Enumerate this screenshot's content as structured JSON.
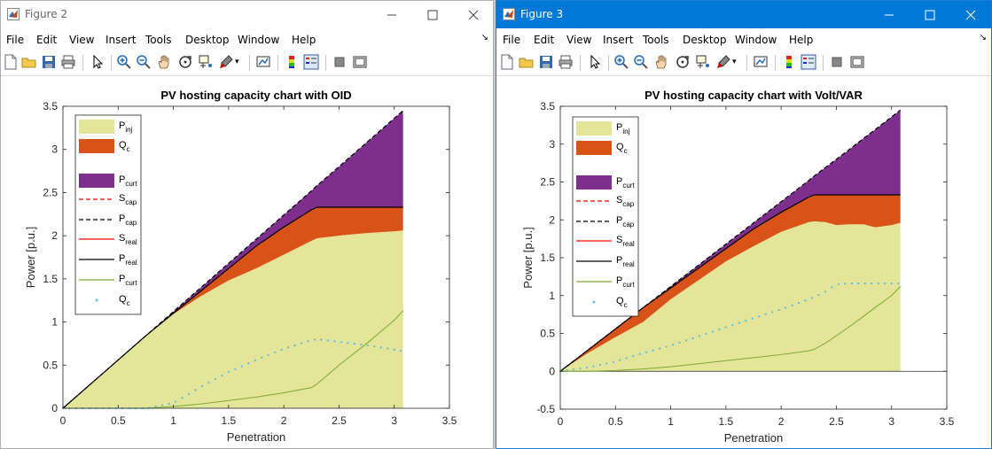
{
  "windows": [
    {
      "title": "Figure 2",
      "menus": [
        "File",
        "Edit",
        "View",
        "Insert",
        "Tools",
        "Desktop",
        "Window",
        "Help"
      ],
      "plot": {
        "title": "PV hosting capacity chart with OID",
        "xlabel": "Penetration",
        "ylabel": "Power [p.u.]",
        "xticks": [
          "0",
          "0.5",
          "1",
          "1.5",
          "2",
          "2.5",
          "3",
          "3.5"
        ],
        "yticks": [
          "0",
          "0.5",
          "1",
          "1.5",
          "2",
          "2.5",
          "3",
          "3.5"
        ]
      }
    },
    {
      "title": "Figure 3",
      "menus": [
        "File",
        "Edit",
        "View",
        "Insert",
        "Tools",
        "Desktop",
        "Window",
        "Help"
      ],
      "plot": {
        "title": "PV hosting capacity chart with Volt/VAR",
        "xlabel": "Penetration",
        "ylabel": "Power [p.u.]",
        "xticks": [
          "0",
          "0.5",
          "1",
          "1.5",
          "2",
          "2.5",
          "3",
          "3.5"
        ],
        "yticks": [
          "-0.5",
          "0",
          "0.5",
          "1",
          "1.5",
          "2",
          "2.5",
          "3",
          "3.5"
        ]
      }
    }
  ],
  "legend": [
    {
      "base": "P",
      "sub": "inj",
      "kind": "patch",
      "color": "#e5e59a"
    },
    {
      "base": "Q",
      "sub": "c",
      "kind": "patch",
      "color": "#d95319"
    },
    {
      "base": "P",
      "sub": "curt",
      "kind": "patch",
      "color": "#7e2f8e"
    },
    {
      "base": "S",
      "sub": "cap",
      "kind": "dash",
      "color": "#ff0000"
    },
    {
      "base": "P",
      "sub": "cap",
      "kind": "dash",
      "color": "#000000"
    },
    {
      "base": "S",
      "sub": "real",
      "kind": "line",
      "color": "#ff0000"
    },
    {
      "base": "P",
      "sub": "real",
      "kind": "line",
      "color": "#000000"
    },
    {
      "base": "P",
      "sub": "curt",
      "kind": "line",
      "color": "#77ac30"
    },
    {
      "base": "Q",
      "sub": "c",
      "kind": "dots",
      "color": "#4dbeee"
    }
  ],
  "colors": {
    "pinj": "#e5e59a",
    "qc": "#d95319",
    "pcurt": "#7e2f8e",
    "pcurt_line": "#77ac30",
    "qc_dots": "#4dbeee",
    "titlebar_active": "#0078d7"
  },
  "chart_data": [
    {
      "type": "area",
      "title": "PV hosting capacity chart with OID",
      "xlabel": "Penetration",
      "ylabel": "Power [p.u.]",
      "xlim": [
        0,
        3.5
      ],
      "ylim": [
        0,
        3.5
      ],
      "x": [
        0,
        0.25,
        0.5,
        0.75,
        1.0,
        1.25,
        1.5,
        1.75,
        2.0,
        2.25,
        2.3,
        2.5,
        2.75,
        3.0,
        3.08
      ],
      "series": [
        {
          "name": "P_cap",
          "style": "dash",
          "values": [
            0,
            0.28,
            0.56,
            0.84,
            1.12,
            1.4,
            1.68,
            1.96,
            2.24,
            2.52,
            2.58,
            2.8,
            3.08,
            3.36,
            3.45
          ]
        },
        {
          "name": "P_real",
          "values": [
            0,
            0.28,
            0.56,
            0.84,
            1.1,
            1.36,
            1.62,
            1.88,
            2.1,
            2.3,
            2.33,
            2.33,
            2.33,
            2.33,
            2.33
          ]
        },
        {
          "name": "P_inj",
          "values": [
            0,
            0.28,
            0.56,
            0.84,
            1.09,
            1.3,
            1.48,
            1.62,
            1.78,
            1.94,
            1.97,
            2.0,
            2.03,
            2.05,
            2.06
          ]
        },
        {
          "name": "P_curt",
          "values": [
            0,
            0,
            0,
            0,
            0.02,
            0.05,
            0.09,
            0.13,
            0.18,
            0.24,
            0.28,
            0.5,
            0.75,
            1.02,
            1.13
          ]
        },
        {
          "name": "Q_c",
          "values": [
            0,
            0,
            0,
            0,
            0.06,
            0.25,
            0.42,
            0.56,
            0.69,
            0.79,
            0.8,
            0.77,
            0.73,
            0.68,
            0.66
          ]
        }
      ]
    },
    {
      "type": "area",
      "title": "PV hosting capacity chart with Volt/VAR",
      "xlabel": "Penetration",
      "ylabel": "Power [p.u.]",
      "xlim": [
        0,
        3.5
      ],
      "ylim": [
        -0.5,
        3.5
      ],
      "x": [
        0,
        0.25,
        0.5,
        0.75,
        1.0,
        1.25,
        1.5,
        1.75,
        2.0,
        2.25,
        2.3,
        2.4,
        2.5,
        2.6,
        2.75,
        2.85,
        3.0,
        3.08
      ],
      "series": [
        {
          "name": "P_cap",
          "style": "dash",
          "values": [
            0,
            0.28,
            0.56,
            0.84,
            1.12,
            1.4,
            1.68,
            1.96,
            2.24,
            2.52,
            2.58,
            2.69,
            2.8,
            2.91,
            3.08,
            3.19,
            3.36,
            3.45
          ]
        },
        {
          "name": "P_real",
          "values": [
            0,
            0.28,
            0.56,
            0.84,
            1.1,
            1.36,
            1.62,
            1.88,
            2.1,
            2.3,
            2.33,
            2.33,
            2.33,
            2.33,
            2.33,
            2.33,
            2.33,
            2.33
          ]
        },
        {
          "name": "P_inj",
          "values": [
            0,
            0.24,
            0.45,
            0.65,
            0.95,
            1.2,
            1.45,
            1.65,
            1.84,
            1.97,
            1.98,
            1.97,
            1.93,
            1.94,
            1.94,
            1.9,
            1.93,
            1.96
          ]
        },
        {
          "name": "P_curt",
          "values": [
            0,
            0,
            0.01,
            0.03,
            0.06,
            0.1,
            0.14,
            0.18,
            0.22,
            0.27,
            0.29,
            0.37,
            0.47,
            0.57,
            0.73,
            0.84,
            1.0,
            1.12
          ]
        },
        {
          "name": "Q_c",
          "values": [
            0,
            0.05,
            0.13,
            0.24,
            0.34,
            0.46,
            0.58,
            0.7,
            0.82,
            0.95,
            0.98,
            1.05,
            1.15,
            1.16,
            1.16,
            1.16,
            1.16,
            1.16
          ]
        }
      ]
    }
  ]
}
